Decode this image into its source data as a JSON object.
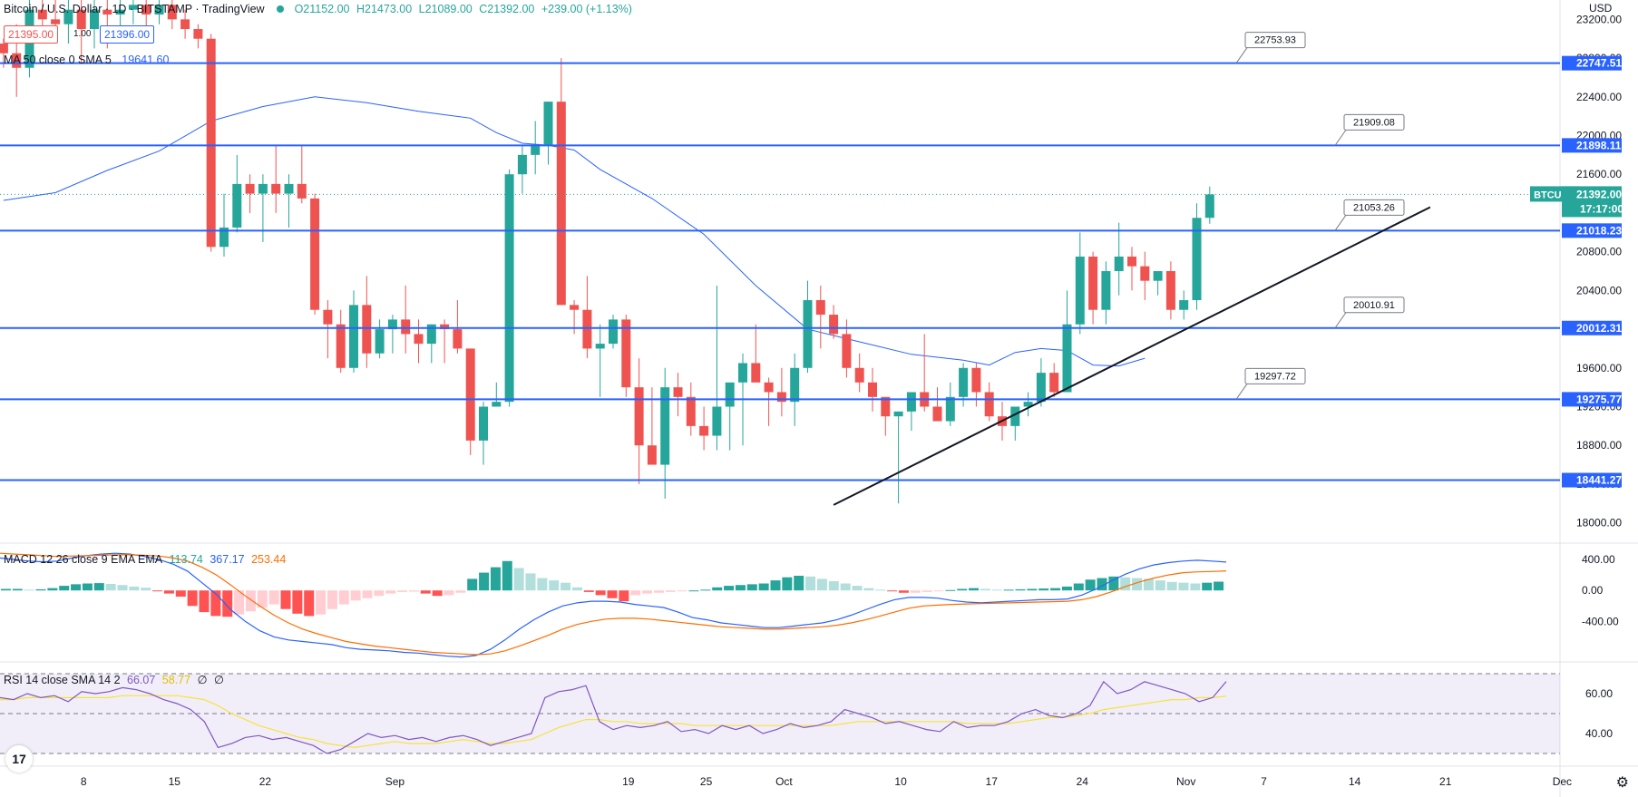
{
  "header": {
    "title": "Bitcoin / U.S. Dollar · 1D · BITSTAMP · TradingView",
    "ohlc": {
      "o": "O21152.00",
      "h": "H21473.00",
      "l": "L21089.00",
      "c": "C21392.00",
      "chg": "+239.00 (+1.13%)"
    },
    "bid": "21395.00",
    "spread": "1.00",
    "ask": "21396.00",
    "ma_label": "MA 50 close 0 SMA 5",
    "ma_value": "19641.60",
    "currency": "USD"
  },
  "colors": {
    "up": "#26a69a",
    "down": "#ef5350",
    "hline": "#2962ff",
    "ma": "#2962ff",
    "macd": "#2962ff",
    "signal": "#ff6d00",
    "rsi": "#7e57c2",
    "rsima": "#f5e33b"
  },
  "chart_data": {
    "type": "candlestick",
    "price_axis": {
      "min": 17800,
      "max": 23400,
      "ticks": [
        18000,
        18400,
        18800,
        19200,
        19600,
        20000,
        20400,
        20800,
        21200,
        21600,
        22000,
        22400,
        22800,
        23200
      ],
      "tick_labels": [
        "18000.00",
        "18400.00",
        "18800.00",
        "19200.00",
        "19600.00",
        "20000.00",
        "20400.00",
        "20800.00",
        "21200.00",
        "21600.00",
        "22000.00",
        "22400.00",
        "22800.00",
        "23200.00"
      ]
    },
    "x_axis": {
      "labels": [
        "8",
        "15",
        "22",
        "Sep",
        "19",
        "25",
        "Oct",
        "10",
        "17",
        "24",
        "Nov",
        "7",
        "14",
        "21",
        "Dec"
      ],
      "label_day_index": [
        1,
        8,
        15,
        25,
        43,
        49,
        55,
        64,
        71,
        78,
        86,
        92,
        99,
        106,
        115
      ]
    },
    "horizontal_levels": [
      {
        "price": 22747.51,
        "label": "22747.51",
        "callout": "22753.93"
      },
      {
        "price": 21898.11,
        "label": "21898.11",
        "callout": "21909.08"
      },
      {
        "price": 21018.23,
        "label": "21018.23",
        "callout": "21053.26"
      },
      {
        "price": 20012.31,
        "label": "20012.31",
        "callout": "20010.91"
      },
      {
        "price": 19275.77,
        "label": "19275.77",
        "callout": "19297.72"
      },
      {
        "price": 18441.27,
        "label": "18441.27",
        "callout": ""
      }
    ],
    "current_price": {
      "symbol": "BTCUSD",
      "price": "21392.00",
      "countdown": "17:17:00"
    },
    "trendline": {
      "from": {
        "day": 64,
        "price": 18185
      },
      "to": {
        "day": 110,
        "price": 21260
      }
    },
    "candles_ohlc": [
      [
        22950,
        23000,
        22700,
        22850
      ],
      [
        22850,
        23150,
        22400,
        22700
      ],
      [
        22700,
        23400,
        22600,
        23300
      ],
      [
        23300,
        23400,
        23100,
        23200
      ],
      [
        23200,
        23400,
        23050,
        23150
      ],
      [
        23150,
        23400,
        22950,
        23300
      ],
      [
        23300,
        23400,
        22750,
        23100
      ],
      [
        23100,
        23400,
        22900,
        23300
      ],
      [
        23300,
        23400,
        22900,
        23250
      ],
      [
        23250,
        23400,
        23100,
        23300
      ],
      [
        23300,
        23400,
        23150,
        23350
      ],
      [
        23350,
        23400,
        23100,
        23250
      ],
      [
        23250,
        23400,
        23150,
        23350
      ],
      [
        23350,
        23400,
        23100,
        23200
      ],
      [
        23200,
        23300,
        23000,
        23100
      ],
      [
        23100,
        23150,
        22900,
        23000
      ],
      [
        23000,
        23050,
        20800,
        20850
      ],
      [
        20850,
        21400,
        20750,
        21050
      ],
      [
        21050,
        21800,
        21000,
        21500
      ],
      [
        21500,
        21600,
        21200,
        21400
      ],
      [
        21400,
        21600,
        20900,
        21500
      ],
      [
        21500,
        21900,
        21200,
        21400
      ],
      [
        21400,
        21600,
        21050,
        21500
      ],
      [
        21500,
        21900,
        21300,
        21350
      ],
      [
        21350,
        21400,
        20150,
        20200
      ],
      [
        20200,
        20300,
        19700,
        20050
      ],
      [
        20050,
        20200,
        19550,
        19600
      ],
      [
        19600,
        20400,
        19550,
        20250
      ],
      [
        20250,
        20550,
        19600,
        19750
      ],
      [
        19750,
        20100,
        19700,
        20000
      ],
      [
        20000,
        20150,
        19750,
        20100
      ],
      [
        20100,
        20450,
        19750,
        19950
      ],
      [
        19950,
        20100,
        19650,
        19850
      ],
      [
        19850,
        20050,
        19650,
        20050
      ],
      [
        20050,
        20100,
        19650,
        20000
      ],
      [
        20000,
        20300,
        19750,
        19800
      ],
      [
        19800,
        19800,
        18700,
        18850
      ],
      [
        18850,
        19250,
        18600,
        19200
      ],
      [
        19200,
        19450,
        19200,
        19250
      ],
      [
        19250,
        21650,
        19200,
        21600
      ],
      [
        21600,
        21900,
        21400,
        21800
      ],
      [
        21800,
        22150,
        21600,
        21900
      ],
      [
        21900,
        22350,
        21700,
        22350
      ],
      [
        22350,
        22800,
        21050,
        20250
      ],
      [
        20250,
        20300,
        19950,
        20200
      ],
      [
        20200,
        20550,
        19700,
        19800
      ],
      [
        19800,
        20050,
        19300,
        19850
      ],
      [
        19850,
        20150,
        19800,
        20100
      ],
      [
        20100,
        20150,
        19300,
        19400
      ],
      [
        19400,
        19700,
        18400,
        18800
      ],
      [
        18800,
        19400,
        18700,
        18600
      ],
      [
        18600,
        19600,
        18250,
        19400
      ],
      [
        19400,
        19550,
        19100,
        19300
      ],
      [
        19300,
        19450,
        18900,
        19000
      ],
      [
        19000,
        19200,
        18750,
        18900
      ],
      [
        18900,
        20450,
        18750,
        19200
      ],
      [
        19200,
        19300,
        18750,
        19450
      ],
      [
        19450,
        19750,
        18800,
        19650
      ],
      [
        19650,
        20050,
        19600,
        19450
      ],
      [
        19450,
        19500,
        19000,
        19350
      ],
      [
        19350,
        19600,
        19100,
        19250
      ],
      [
        19250,
        19750,
        19000,
        19600
      ],
      [
        19600,
        20500,
        19550,
        20300
      ],
      [
        20300,
        20450,
        19800,
        20150
      ],
      [
        20150,
        20250,
        19900,
        19950
      ],
      [
        19950,
        20100,
        19500,
        19600
      ],
      [
        19600,
        19750,
        19350,
        19450
      ],
      [
        19450,
        19600,
        19150,
        19300
      ],
      [
        19300,
        19300,
        18900,
        19100
      ],
      [
        19100,
        19150,
        18200,
        19150
      ],
      [
        19150,
        19300,
        18950,
        19350
      ],
      [
        19350,
        19950,
        19150,
        19200
      ],
      [
        19200,
        19400,
        19050,
        19050
      ],
      [
        19050,
        19450,
        19000,
        19300
      ],
      [
        19300,
        19650,
        19200,
        19600
      ],
      [
        19600,
        19650,
        19200,
        19350
      ],
      [
        19350,
        19450,
        19050,
        19100
      ],
      [
        19100,
        19250,
        18850,
        19000
      ],
      [
        19000,
        19200,
        18850,
        19200
      ],
      [
        19200,
        19350,
        19100,
        19250
      ],
      [
        19250,
        19700,
        19200,
        19550
      ],
      [
        19550,
        19650,
        19300,
        19350
      ],
      [
        19350,
        20400,
        19350,
        20050
      ],
      [
        20050,
        21000,
        19950,
        20750
      ],
      [
        20750,
        20800,
        20050,
        20200
      ],
      [
        20200,
        20700,
        20050,
        20600
      ],
      [
        20600,
        21100,
        20350,
        20750
      ],
      [
        20750,
        20850,
        20400,
        20650
      ],
      [
        20650,
        20800,
        20300,
        20500
      ],
      [
        20500,
        20600,
        20350,
        20600
      ],
      [
        20600,
        20700,
        20100,
        20200
      ],
      [
        20200,
        20400,
        20100,
        20300
      ],
      [
        20300,
        21300,
        20200,
        21150
      ],
      [
        21150,
        21473,
        21089,
        21392
      ]
    ],
    "ma50": [
      [
        0,
        21330
      ],
      [
        4,
        21410
      ],
      [
        8,
        21640
      ],
      [
        12,
        21840
      ],
      [
        16,
        22150
      ],
      [
        20,
        22300
      ],
      [
        24,
        22400
      ],
      [
        28,
        22340
      ],
      [
        32,
        22250
      ],
      [
        36,
        22180
      ],
      [
        38,
        22030
      ],
      [
        40,
        21920
      ],
      [
        42,
        21900
      ],
      [
        44,
        21850
      ],
      [
        46,
        21650
      ],
      [
        50,
        21350
      ],
      [
        54,
        20980
      ],
      [
        58,
        20450
      ],
      [
        62,
        20000
      ],
      [
        66,
        19870
      ],
      [
        70,
        19740
      ],
      [
        74,
        19680
      ],
      [
        76,
        19630
      ],
      [
        78,
        19760
      ],
      [
        80,
        19800
      ],
      [
        82,
        19780
      ],
      [
        84,
        19630
      ],
      [
        86,
        19620
      ],
      [
        88,
        19700
      ]
    ],
    "macd": {
      "axis": {
        "ticks": [
          400,
          0,
          -400
        ],
        "tick_labels": [
          "400.00",
          "0.00",
          "-400.00"
        ]
      },
      "label": "MACD 12 26 close 9 EMA EMA",
      "values": {
        "hist": "113.74",
        "macd": "367.17",
        "signal": "253.44"
      },
      "histogram": [
        20,
        20,
        10,
        15,
        30,
        60,
        80,
        90,
        95,
        85,
        70,
        50,
        35,
        -10,
        -40,
        -80,
        -200,
        -280,
        -330,
        -340,
        -310,
        -270,
        -220,
        -180,
        -240,
        -300,
        -330,
        -310,
        -240,
        -180,
        -130,
        -100,
        -70,
        -40,
        -20,
        -15,
        -40,
        -70,
        -60,
        -30,
        150,
        230,
        300,
        380,
        290,
        220,
        160,
        130,
        100,
        40,
        -20,
        -60,
        -100,
        -140,
        -60,
        -40,
        -30,
        -20,
        -10,
        0,
        10,
        40,
        60,
        70,
        80,
        90,
        130,
        170,
        190,
        180,
        150,
        120,
        90,
        60,
        30,
        10,
        -10,
        -30,
        -30,
        -20,
        -10,
        5,
        20,
        30,
        20,
        10,
        10,
        15,
        20,
        25,
        30,
        50,
        90,
        140,
        160,
        180,
        170,
        160,
        150,
        130,
        110,
        100,
        90,
        100,
        113.74
      ],
      "macd_line": [
        420,
        400,
        380,
        370,
        380,
        420,
        450,
        470,
        480,
        470,
        440,
        400,
        340,
        250,
        100,
        -50,
        -250,
        -400,
        -520,
        -600,
        -640,
        -660,
        -680,
        -700,
        -740,
        -760,
        -770,
        -780,
        -800,
        -810,
        -830,
        -850,
        -860,
        -840,
        -760,
        -640,
        -500,
        -380,
        -280,
        -200,
        -160,
        -140,
        -140,
        -150,
        -180,
        -200,
        -220,
        -280,
        -350,
        -380,
        -420,
        -440,
        -460,
        -480,
        -480,
        -460,
        -440,
        -420,
        -380,
        -320,
        -250,
        -180,
        -120,
        -90,
        -90,
        -100,
        -130,
        -150,
        -160,
        -150,
        -140,
        -130,
        -120,
        -120,
        -110,
        -60,
        20,
        120,
        210,
        280,
        330,
        360,
        380,
        390,
        380,
        367.17
      ],
      "signal_line": [
        480,
        470,
        460,
        450,
        440,
        445,
        450,
        455,
        460,
        460,
        455,
        445,
        420,
        380,
        300,
        200,
        70,
        -70,
        -200,
        -320,
        -420,
        -500,
        -560,
        -610,
        -660,
        -690,
        -720,
        -740,
        -760,
        -780,
        -800,
        -810,
        -820,
        -830,
        -820,
        -780,
        -720,
        -650,
        -580,
        -500,
        -440,
        -400,
        -370,
        -360,
        -360,
        -370,
        -390,
        -410,
        -430,
        -450,
        -470,
        -480,
        -490,
        -500,
        -500,
        -490,
        -480,
        -470,
        -450,
        -420,
        -380,
        -330,
        -280,
        -230,
        -200,
        -190,
        -180,
        -175,
        -170,
        -165,
        -160,
        -155,
        -150,
        -145,
        -140,
        -120,
        -80,
        -20,
        50,
        110,
        160,
        200,
        230,
        240,
        245,
        253.44
      ]
    },
    "rsi": {
      "axis": {
        "ticks": [
          60,
          40
        ],
        "tick_labels": [
          "60.00",
          "40.00"
        ],
        "bands": [
          70,
          50,
          30
        ]
      },
      "label": "RSI 14 close SMA 14 2",
      "values": {
        "rsi": "66.07",
        "ma": "58.77",
        "div1": "∅",
        "div2": "∅"
      },
      "rsi_line": [
        58,
        57,
        60,
        58,
        59,
        56,
        61,
        60,
        61,
        63,
        62,
        60,
        57,
        55,
        52,
        46,
        33,
        35,
        38,
        39,
        37,
        38,
        36,
        34,
        30,
        32,
        36,
        40,
        38,
        39,
        37,
        38,
        36,
        38,
        39,
        37,
        34,
        36,
        38,
        40,
        58,
        61,
        62,
        64,
        46,
        42,
        44,
        43,
        44,
        46,
        41,
        42,
        40,
        44,
        42,
        44,
        40,
        42,
        45,
        43,
        44,
        46,
        52,
        50,
        48,
        45,
        46,
        44,
        42,
        41,
        46,
        43,
        44,
        44,
        46,
        50,
        52,
        49,
        48,
        50,
        54,
        66,
        60,
        62,
        66,
        64,
        62,
        60,
        56,
        58,
        66.07
      ],
      "rsi_ma": [
        57,
        57,
        58,
        58,
        58,
        58,
        58,
        58,
        58,
        59,
        59,
        59,
        59,
        59,
        58,
        57,
        54,
        50,
        47,
        44,
        42,
        40,
        38,
        37,
        35,
        34,
        33,
        34,
        35,
        36,
        35,
        35,
        35,
        36,
        37,
        36,
        35,
        35,
        36,
        37,
        40,
        43,
        45,
        47,
        47,
        46,
        46,
        45,
        45,
        45,
        45,
        44,
        44,
        44,
        44,
        44,
        44,
        44,
        44,
        44,
        44,
        44,
        45,
        46,
        46,
        46,
        46,
        46,
        46,
        46,
        46,
        45,
        45,
        45,
        45,
        46,
        47,
        48,
        48,
        49,
        50,
        52,
        53,
        54,
        55,
        56,
        57,
        57,
        58,
        58,
        58.77
      ]
    }
  }
}
